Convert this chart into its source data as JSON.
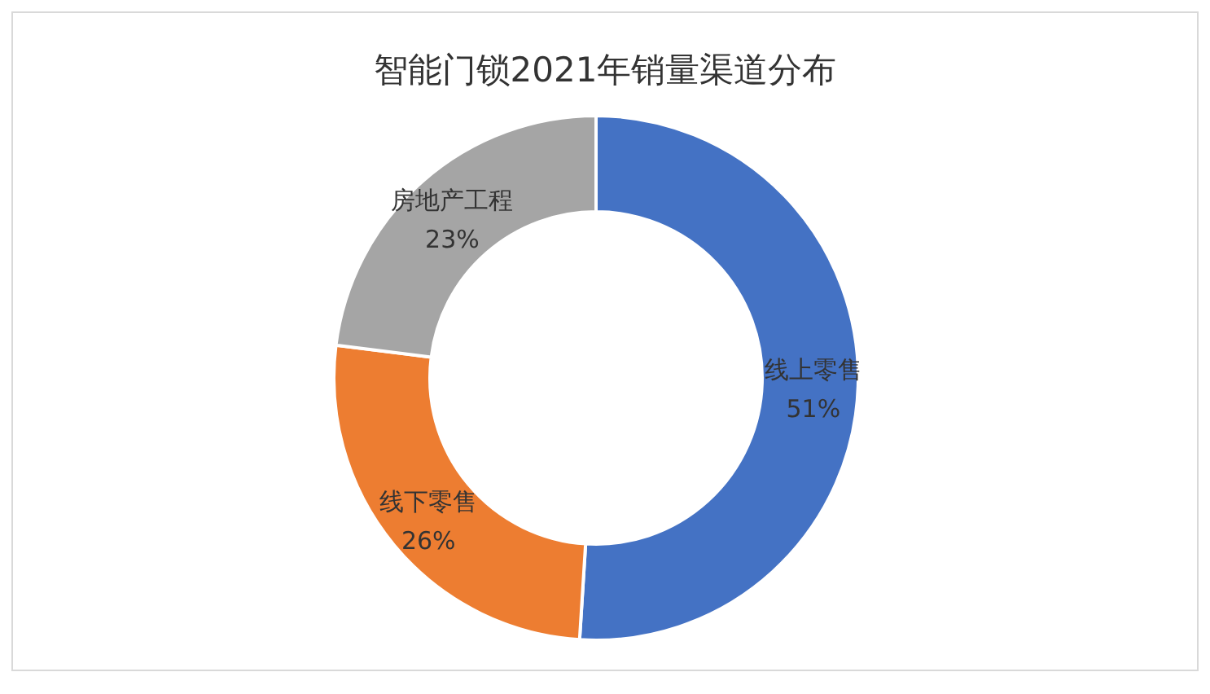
{
  "chart_data": {
    "type": "donut",
    "title": "智能门锁2021年销量渠道分布",
    "categories": [
      "线上零售",
      "线下零售",
      "房地产工程"
    ],
    "values": [
      51,
      26,
      23
    ],
    "value_labels": [
      "51%",
      "26%",
      "23%"
    ],
    "colors": [
      "#4472c4",
      "#ed7d31",
      "#a5a5a5"
    ],
    "legend": false
  }
}
